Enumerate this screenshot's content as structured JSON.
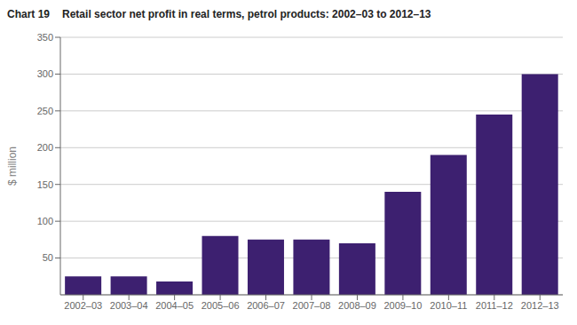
{
  "chart_data": {
    "type": "bar",
    "title": "Chart 19",
    "subtitle": "Retail sector net profit in real terms, petrol products: 2002–03 to 2012–13",
    "categories": [
      "2002–03",
      "2003–04",
      "2004–05",
      "2005–06",
      "2006–07",
      "2007–08",
      "2008–09",
      "2009–10",
      "2010–11",
      "2011–12",
      "2012–13"
    ],
    "values": [
      25,
      25,
      18,
      80,
      75,
      75,
      70,
      140,
      190,
      245,
      300
    ],
    "color": "#3d2070",
    "ylabel": "$ million",
    "ylim": [
      0,
      350
    ],
    "yticks": [
      50,
      100,
      150,
      200,
      250,
      300,
      350
    ],
    "grid": true
  }
}
